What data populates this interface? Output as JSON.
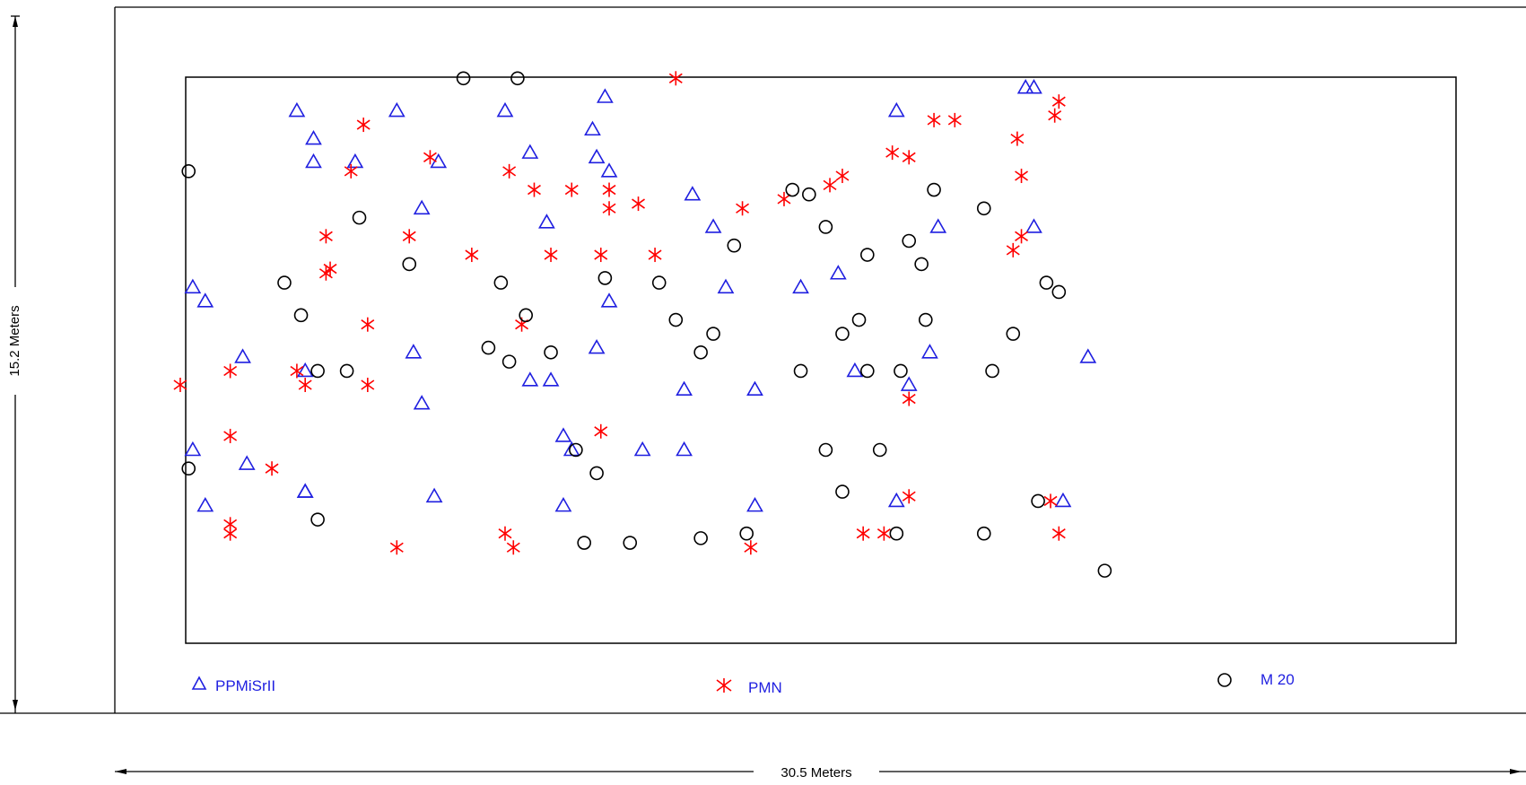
{
  "dimensions": {
    "width_label": "30.5 Meters",
    "height_label": "15.2 Meters"
  },
  "legend": {
    "triangle_label": "PPMiSrII",
    "star_label": "PMN",
    "circle_label": "M 20"
  },
  "colors": {
    "triangle": "#1f1fe0",
    "star": "#ff0000",
    "circle": "#000000",
    "lines": "#000000"
  },
  "chart_data": {
    "type": "scatter",
    "xlabel": "30.5 Meters",
    "ylabel": "15.2 Meters",
    "series": [
      {
        "name": "PPMiSrII",
        "marker": "triangle",
        "points": [
          [
            2.9,
            14.9
          ],
          [
            3.3,
            14.3
          ],
          [
            3.3,
            13.8
          ],
          [
            4.3,
            13.8
          ],
          [
            5.3,
            14.9
          ],
          [
            6.3,
            13.8
          ],
          [
            5.9,
            12.8
          ],
          [
            7.9,
            14.9
          ],
          [
            10.3,
            15.2
          ],
          [
            10.0,
            14.5
          ],
          [
            10.1,
            13.9
          ],
          [
            10.4,
            13.6
          ],
          [
            8.9,
            12.5
          ],
          [
            12.4,
            13.1
          ],
          [
            12.9,
            12.4
          ],
          [
            0.4,
            11.1
          ],
          [
            0.7,
            10.8
          ],
          [
            1.6,
            9.6
          ],
          [
            3.1,
            9.3
          ],
          [
            5.7,
            9.7
          ],
          [
            5.9,
            8.6
          ],
          [
            8.5,
            9.1
          ],
          [
            9.0,
            9.1
          ],
          [
            10.1,
            9.8
          ],
          [
            10.4,
            10.8
          ],
          [
            13.2,
            11.1
          ],
          [
            15.0,
            11.1
          ],
          [
            15.9,
            11.4
          ],
          [
            16.3,
            9.3
          ],
          [
            17.6,
            9.0
          ],
          [
            18.1,
            9.7
          ],
          [
            18.3,
            12.4
          ],
          [
            17.3,
            14.9
          ],
          [
            20.4,
            15.4
          ],
          [
            20.6,
            15.4
          ],
          [
            20.6,
            12.4
          ],
          [
            21.9,
            9.6
          ],
          [
            0.4,
            7.6
          ],
          [
            0.7,
            6.4
          ],
          [
            1.7,
            7.3
          ],
          [
            3.1,
            6.7
          ],
          [
            6.2,
            6.6
          ],
          [
            9.3,
            7.9
          ],
          [
            9.5,
            7.6
          ],
          [
            12.2,
            8.9
          ],
          [
            12.2,
            7.6
          ],
          [
            13.9,
            8.9
          ],
          [
            9.3,
            6.4
          ],
          [
            13.9,
            6.4
          ],
          [
            11.2,
            7.6
          ],
          [
            17.3,
            6.5
          ],
          [
            3.1,
            6.7
          ],
          [
            21.3,
            6.5
          ],
          [
            8.5,
            14.0
          ]
        ]
      },
      {
        "name": "PMN",
        "marker": "star",
        "points": [
          [
            6.1,
            13.9
          ],
          [
            8.0,
            13.6
          ],
          [
            10.4,
            12.8
          ],
          [
            12.0,
            15.6
          ],
          [
            4.2,
            13.6
          ],
          [
            3.6,
            12.2
          ],
          [
            3.7,
            11.5
          ],
          [
            4.5,
            14.6
          ],
          [
            5.6,
            12.2
          ],
          [
            8.6,
            13.2
          ],
          [
            9.5,
            13.2
          ],
          [
            10.4,
            13.2
          ],
          [
            11.1,
            12.9
          ],
          [
            7.1,
            11.8
          ],
          [
            4.6,
            10.3
          ],
          [
            3.6,
            11.4
          ],
          [
            9.0,
            11.8
          ],
          [
            10.2,
            11.8
          ],
          [
            11.5,
            11.8
          ],
          [
            8.3,
            10.3
          ],
          [
            0.1,
            9.0
          ],
          [
            1.3,
            9.3
          ],
          [
            2.9,
            9.3
          ],
          [
            3.1,
            9.0
          ],
          [
            4.6,
            9.0
          ],
          [
            1.3,
            7.9
          ],
          [
            2.3,
            7.2
          ],
          [
            1.3,
            6.0
          ],
          [
            1.3,
            5.8
          ],
          [
            7.9,
            5.8
          ],
          [
            8.1,
            5.5
          ],
          [
            5.3,
            5.5
          ],
          [
            10.2,
            8.0
          ],
          [
            13.8,
            5.5
          ],
          [
            13.6,
            12.8
          ],
          [
            14.6,
            13.0
          ],
          [
            15.7,
            13.3
          ],
          [
            16.0,
            13.5
          ],
          [
            17.2,
            14.0
          ],
          [
            17.6,
            13.9
          ],
          [
            18.2,
            14.7
          ],
          [
            18.7,
            14.7
          ],
          [
            17.6,
            8.7
          ],
          [
            17.6,
            6.6
          ],
          [
            16.5,
            5.8
          ],
          [
            17.0,
            5.8
          ],
          [
            20.2,
            14.3
          ],
          [
            20.3,
            13.5
          ],
          [
            20.3,
            12.2
          ],
          [
            20.1,
            11.9
          ],
          [
            21.1,
            14.8
          ],
          [
            21.2,
            15.1
          ],
          [
            21.0,
            6.5
          ],
          [
            21.2,
            5.8
          ]
        ]
      },
      {
        "name": "M 20",
        "marker": "circle",
        "points": [
          [
            6.9,
            15.6
          ],
          [
            8.2,
            15.6
          ],
          [
            0.3,
            13.6
          ],
          [
            4.4,
            12.6
          ],
          [
            5.6,
            11.6
          ],
          [
            2.6,
            11.2
          ],
          [
            3.0,
            10.5
          ],
          [
            3.4,
            9.3
          ],
          [
            4.1,
            9.3
          ],
          [
            8.4,
            10.5
          ],
          [
            7.5,
            9.8
          ],
          [
            8.0,
            9.5
          ],
          [
            9.0,
            9.7
          ],
          [
            10.3,
            11.3
          ],
          [
            12.0,
            10.4
          ],
          [
            12.9,
            10.1
          ],
          [
            11.6,
            11.2
          ],
          [
            13.4,
            12.0
          ],
          [
            14.8,
            13.2
          ],
          [
            15.2,
            13.1
          ],
          [
            15.6,
            12.4
          ],
          [
            16.6,
            11.8
          ],
          [
            17.6,
            12.1
          ],
          [
            18.2,
            13.2
          ],
          [
            19.4,
            12.8
          ],
          [
            17.9,
            11.6
          ],
          [
            16.4,
            10.4
          ],
          [
            17.4,
            9.3
          ],
          [
            19.6,
            9.3
          ],
          [
            18.0,
            10.4
          ],
          [
            20.1,
            10.1
          ],
          [
            20.9,
            11.2
          ],
          [
            21.2,
            11.0
          ],
          [
            12.6,
            9.7
          ],
          [
            15.0,
            9.3
          ],
          [
            16.0,
            10.1
          ],
          [
            16.6,
            9.3
          ],
          [
            9.6,
            7.6
          ],
          [
            10.1,
            7.1
          ],
          [
            15.6,
            7.6
          ],
          [
            16.9,
            7.6
          ],
          [
            16.0,
            6.7
          ],
          [
            17.3,
            5.8
          ],
          [
            19.4,
            5.8
          ],
          [
            20.7,
            6.5
          ],
          [
            22.3,
            5.0
          ],
          [
            0.3,
            7.2
          ],
          [
            3.4,
            6.1
          ],
          [
            9.8,
            5.6
          ],
          [
            10.9,
            5.6
          ],
          [
            12.6,
            5.7
          ],
          [
            13.7,
            5.8
          ],
          [
            7.8,
            11.2
          ]
        ]
      }
    ]
  }
}
